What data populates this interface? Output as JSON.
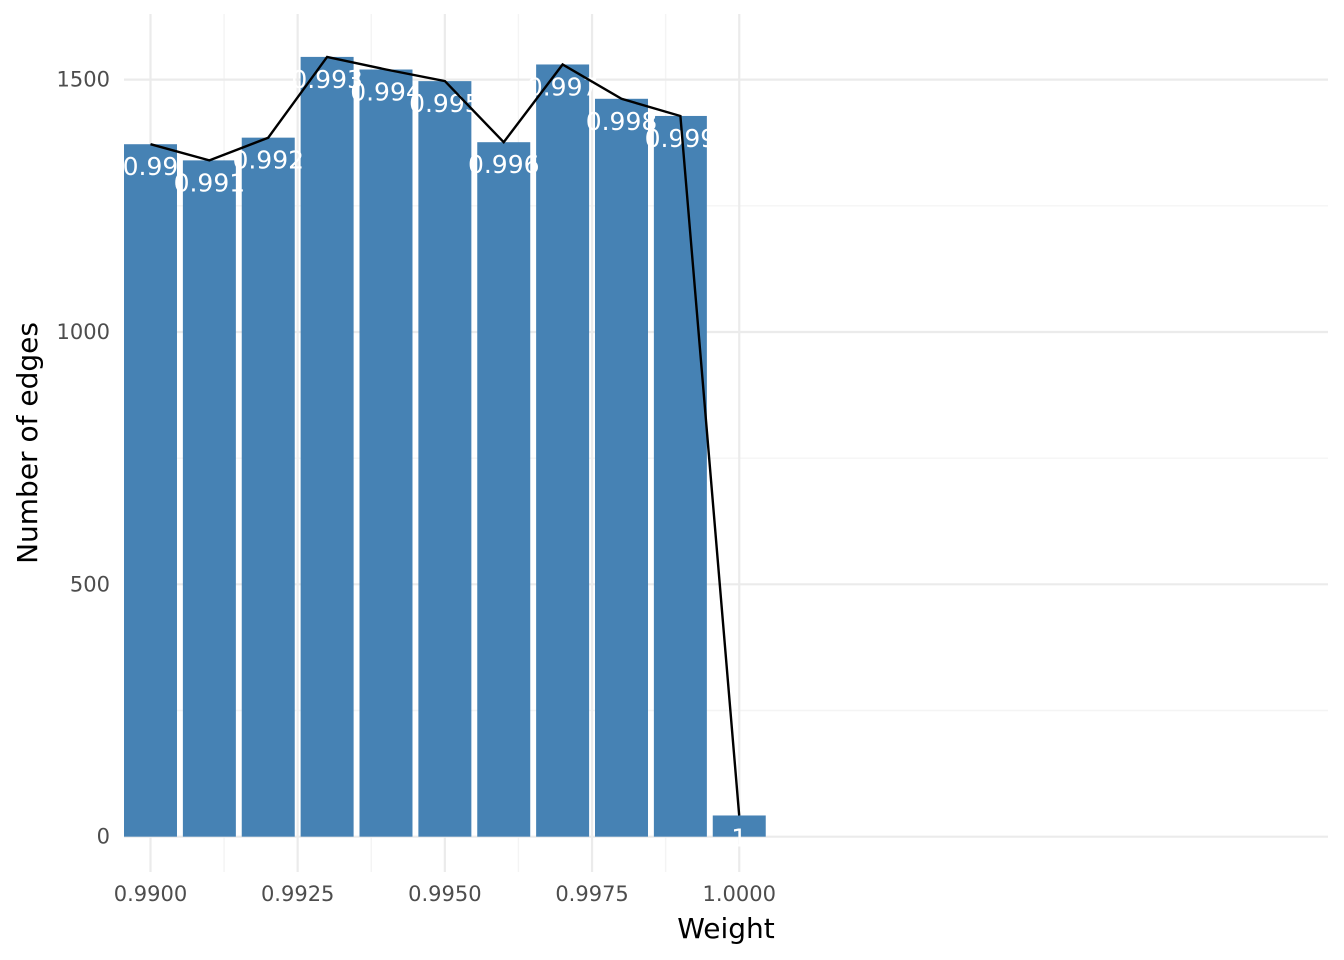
{
  "chart_data": {
    "type": "bar",
    "title": "",
    "xlabel": "Weight",
    "ylabel": "Number of edges",
    "x": [
      0.99,
      0.991,
      0.992,
      0.993,
      0.994,
      0.995,
      0.996,
      0.997,
      0.998,
      0.999,
      1.0
    ],
    "values": [
      1372,
      1340,
      1385,
      1545,
      1520,
      1497,
      1376,
      1530,
      1462,
      1428,
      42
    ],
    "bar_labels": [
      "0.99",
      "0.991",
      "0.992",
      "0.993",
      "0.994",
      "0.995",
      "0.996",
      "0.997",
      "0.998",
      "0.999",
      "1"
    ],
    "overlay_line": true,
    "xlim": [
      0.98955,
      1.01
    ],
    "ylim": [
      -70,
      1630
    ],
    "x_ticks": [
      0.99,
      0.9925,
      0.995,
      0.9975,
      1.0
    ],
    "x_tick_labels": [
      "0.9900",
      "0.9925",
      "0.9950",
      "0.9975",
      "1.0000"
    ],
    "y_ticks": [
      0,
      500,
      1000,
      1500
    ],
    "y_tick_labels": [
      "0",
      "500",
      "1000",
      "1500"
    ],
    "grid": true,
    "legend": "none",
    "bar_color": "#4682b4",
    "line_color": "#000000"
  }
}
